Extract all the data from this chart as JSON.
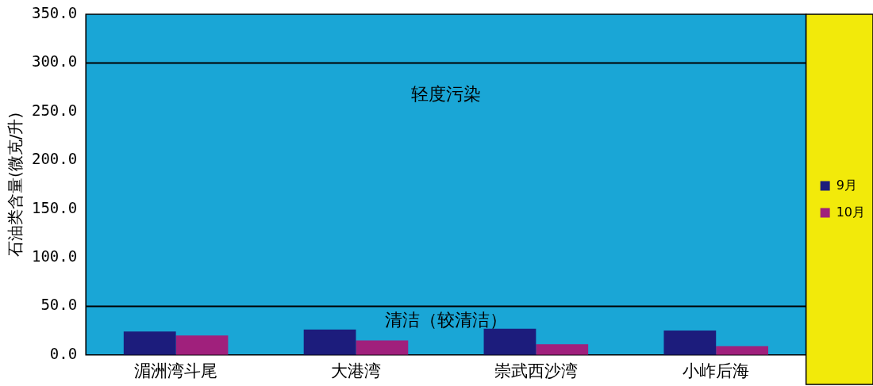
{
  "chart_data": {
    "type": "bar",
    "ylabel": "石油类含量(微克/升)",
    "categories": [
      "湄洲湾斗尾",
      "大港湾",
      "崇武西沙湾",
      "小岞后海"
    ],
    "series": [
      {
        "name": "9月",
        "color": "#1c1c7c",
        "values": [
          24,
          26,
          27,
          25
        ]
      },
      {
        "name": "10月",
        "color": "#a0207c",
        "values": [
          20,
          15,
          11,
          9
        ]
      }
    ],
    "ylim": [
      0,
      350
    ],
    "yticks": [
      {
        "value": 0,
        "label": "0.0"
      },
      {
        "value": 50,
        "label": "50.0"
      },
      {
        "value": 100,
        "label": "100.0"
      },
      {
        "value": 150,
        "label": "150.0"
      },
      {
        "value": 200,
        "label": "200.0"
      },
      {
        "value": 250,
        "label": "250.0"
      },
      {
        "value": 300,
        "label": "300.0"
      },
      {
        "value": 350,
        "label": "350.0"
      }
    ],
    "ref_lines": [
      {
        "axis": "y",
        "value": 300,
        "label": "轻度污染",
        "color": "#000000"
      },
      {
        "axis": "y",
        "value": 50,
        "label": "清洁（较清洁）",
        "color": "#000000"
      }
    ],
    "grid": false,
    "legend": "right"
  }
}
